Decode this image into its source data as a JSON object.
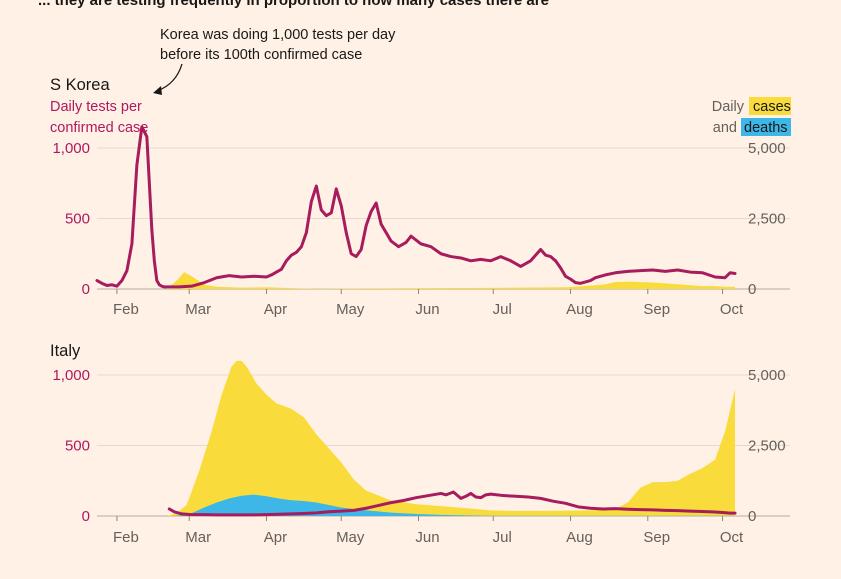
{
  "heading": "... they are testing frequently in proportion to how many cases there are",
  "colors": {
    "background": "#fff1e5",
    "tests_line": "#a61c5c",
    "cases_fill": "#f9dc3c",
    "deaths_fill": "#3db6e8",
    "gridline": "#e6d9ce",
    "axis_text": "#66605c",
    "left_axis_text": "#b0185f"
  },
  "legend": {
    "prefix_daily": "Daily",
    "prefix_and": "and",
    "cases_label": "cases",
    "deaths_label": "deaths"
  },
  "chart_data": [
    {
      "type": "area",
      "id": "korea",
      "title": "S Korea",
      "subtitle_lines": [
        "Daily tests per",
        "confirmed case"
      ],
      "annotation_lines": [
        "Korea was doing 1,000 tests per day",
        "before its 100th confirmed case"
      ],
      "annotation_x": 15.8,
      "annotation_y": 1005,
      "x_tick_labels": [
        "Feb",
        "Mar",
        "Apr",
        "May",
        "Jun",
        "Jul",
        "Aug",
        "Sep",
        "Oct"
      ],
      "x_tick_positions": [
        0,
        29,
        60,
        90,
        121,
        151,
        182,
        213,
        243
      ],
      "xlim": [
        -8,
        250
      ],
      "left_axis": {
        "ylim": [
          0,
          1000
        ],
        "ticks": [
          0,
          500,
          1000
        ],
        "tick_labels": [
          "0",
          "500",
          "1,000"
        ]
      },
      "right_axis": {
        "ylim": [
          0,
          5000
        ],
        "ticks": [
          0,
          2500,
          5000
        ],
        "tick_labels": [
          "0",
          "2,500",
          "5,000"
        ]
      },
      "tests_per_case": {
        "x": [
          -8,
          -6,
          -4,
          -2,
          0,
          2,
          4,
          6,
          8,
          10,
          12,
          14,
          15,
          16,
          17,
          18,
          19,
          20,
          22,
          25,
          30,
          35,
          40,
          45,
          50,
          55,
          60,
          62,
          64,
          66,
          68,
          70,
          72,
          74,
          76,
          78,
          80,
          82,
          84,
          86,
          88,
          90,
          92,
          94,
          96,
          98,
          100,
          102,
          104,
          106,
          110,
          113,
          116,
          118,
          122,
          126,
          130,
          134,
          138,
          142,
          146,
          150,
          154,
          158,
          162,
          166,
          170,
          172,
          174,
          176,
          178,
          180,
          182,
          184,
          186,
          188,
          190,
          192,
          196,
          200,
          205,
          210,
          215,
          220,
          225,
          230,
          235,
          240,
          244,
          246,
          248
        ],
        "values": [
          60,
          40,
          25,
          30,
          20,
          60,
          130,
          320,
          880,
          1150,
          1080,
          420,
          200,
          60,
          30,
          20,
          15,
          15,
          15,
          15,
          20,
          45,
          80,
          95,
          85,
          90,
          85,
          100,
          120,
          140,
          200,
          240,
          260,
          300,
          400,
          620,
          730,
          560,
          520,
          540,
          710,
          590,
          400,
          250,
          230,
          280,
          450,
          550,
          610,
          460,
          340,
          300,
          330,
          375,
          320,
          300,
          250,
          230,
          220,
          200,
          210,
          200,
          230,
          200,
          160,
          200,
          280,
          240,
          230,
          200,
          150,
          90,
          70,
          45,
          40,
          50,
          60,
          80,
          100,
          115,
          125,
          130,
          135,
          125,
          135,
          120,
          115,
          85,
          80,
          115,
          110
        ]
      },
      "cases": {
        "x": [
          -8,
          20,
          24,
          27,
          31,
          35,
          40,
          50,
          60,
          70,
          80,
          100,
          120,
          150,
          180,
          195,
          200,
          206,
          215,
          225,
          235,
          240,
          244,
          248
        ],
        "values": [
          0,
          0,
          300,
          600,
          400,
          150,
          80,
          50,
          60,
          30,
          10,
          20,
          30,
          40,
          60,
          150,
          250,
          260,
          230,
          170,
          100,
          100,
          80,
          80
        ]
      },
      "deaths": {
        "x": [
          -8,
          248
        ],
        "values": [
          0,
          0
        ]
      }
    },
    {
      "type": "area",
      "id": "italy",
      "title": "Italy",
      "x_tick_labels": [
        "Feb",
        "Mar",
        "Apr",
        "May",
        "Jun",
        "Jul",
        "Aug",
        "Sep",
        "Oct"
      ],
      "x_tick_positions": [
        0,
        29,
        60,
        90,
        121,
        151,
        182,
        213,
        243
      ],
      "xlim": [
        -8,
        250
      ],
      "left_axis": {
        "ylim": [
          0,
          1000
        ],
        "ticks": [
          0,
          500,
          1000
        ],
        "tick_labels": [
          "0",
          "500",
          "1,000"
        ]
      },
      "right_axis": {
        "ylim": [
          0,
          5000
        ],
        "ticks": [
          0,
          2500,
          5000
        ],
        "tick_labels": [
          "0",
          "2,500",
          "5,000"
        ]
      },
      "tests_per_case": {
        "x": [
          21,
          23,
          26,
          30,
          35,
          40,
          45,
          50,
          55,
          60,
          65,
          70,
          75,
          80,
          85,
          90,
          95,
          100,
          105,
          110,
          115,
          120,
          125,
          130,
          132,
          135,
          138,
          140,
          142,
          144,
          146,
          148,
          150,
          155,
          160,
          165,
          170,
          175,
          180,
          185,
          190,
          195,
          200,
          205,
          210,
          215,
          220,
          225,
          230,
          235,
          240,
          243,
          246,
          248
        ],
        "values": [
          50,
          30,
          15,
          10,
          10,
          8,
          8,
          8,
          8,
          10,
          12,
          15,
          18,
          22,
          30,
          35,
          40,
          55,
          75,
          95,
          110,
          130,
          145,
          160,
          150,
          170,
          125,
          140,
          160,
          135,
          130,
          150,
          155,
          145,
          140,
          135,
          125,
          105,
          90,
          65,
          55,
          50,
          52,
          48,
          45,
          43,
          40,
          38,
          35,
          32,
          28,
          25,
          20,
          20
        ]
      },
      "cases": {
        "x": [
          -8,
          20,
          24,
          28,
          33,
          38,
          42,
          46,
          48,
          50,
          52,
          56,
          60,
          64,
          70,
          75,
          80,
          85,
          90,
          95,
          100,
          110,
          120,
          130,
          140,
          150,
          160,
          170,
          180,
          190,
          200,
          205,
          210,
          215,
          220,
          225,
          230,
          235,
          240,
          244,
          248
        ],
        "values": [
          0,
          0,
          100,
          400,
          1600,
          3000,
          4300,
          5300,
          5500,
          5500,
          5300,
          4700,
          4300,
          4000,
          3800,
          3500,
          2900,
          2400,
          1900,
          1300,
          900,
          550,
          420,
          350,
          280,
          200,
          180,
          180,
          190,
          200,
          250,
          480,
          1000,
          1200,
          1200,
          1250,
          1500,
          1700,
          2000,
          3000,
          4500
        ]
      },
      "deaths": {
        "x": [
          -8,
          22,
          26,
          30,
          35,
          40,
          45,
          50,
          55,
          60,
          65,
          70,
          75,
          80,
          90,
          100,
          110,
          120,
          130,
          140,
          150,
          248
        ],
        "values": [
          0,
          0,
          30,
          100,
          300,
          480,
          620,
          720,
          760,
          700,
          620,
          560,
          530,
          480,
          300,
          200,
          120,
          70,
          40,
          20,
          10,
          10
        ]
      }
    }
  ]
}
